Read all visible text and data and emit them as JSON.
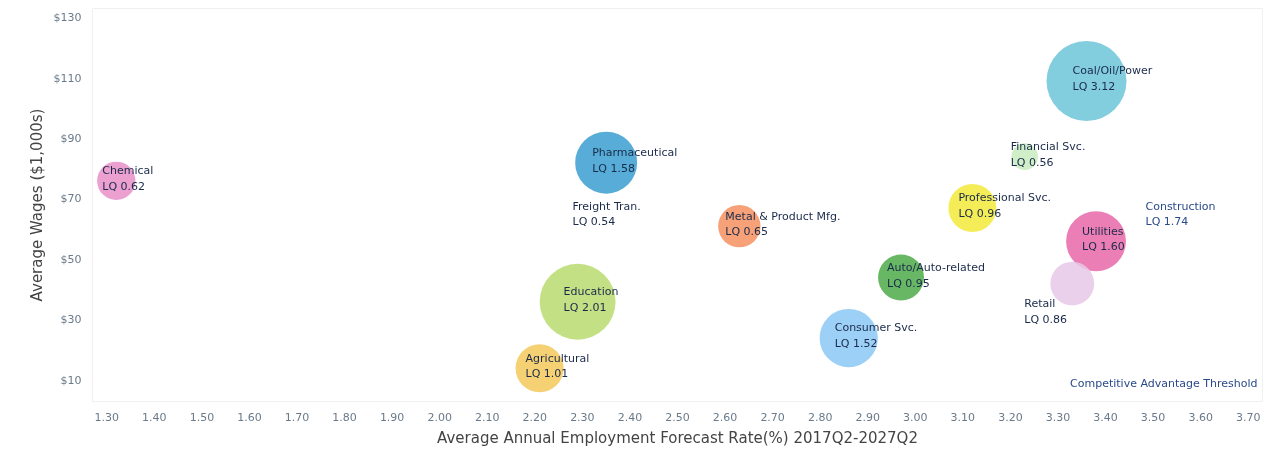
{
  "chart_data": {
    "type": "bubble",
    "xlabel": "Average Annual Employment Forecast Rate(%) 2017Q2-2027Q2",
    "ylabel": "Average Wages ($1,000s)",
    "x": [
      1.32,
      2.35,
      2.29,
      2.21,
      2.63,
      2.86,
      2.97,
      3.12,
      3.23,
      3.36,
      3.38,
      3.33
    ],
    "values": [
      76,
      82,
      36,
      14,
      61,
      24,
      44,
      67,
      84,
      109,
      56,
      42
    ],
    "sizes": [
      0.23,
      0.6,
      0.9,
      0.36,
      0.28,
      0.53,
      0.33,
      0.36,
      0.11,
      1,
      0.56,
      0.3
    ],
    "colors": [
      "#e88fc8",
      "#3a9fd0",
      "#b9dc6e",
      "#f5c95a",
      "#f5905f",
      "#8cc8f5",
      "#4daa4a",
      "#f2ea3a",
      "#c8ecc0",
      "#6cc4d8",
      "#e868a8",
      "#e8c8e8"
    ],
    "xlim": [
      1.27,
      3.73
    ],
    "ylim": [
      3,
      133
    ],
    "xticks": [
      {
        "value": 1.3,
        "label": "1.30"
      },
      {
        "value": 1.4,
        "label": "1.40"
      },
      {
        "value": 1.5,
        "label": "1.50"
      },
      {
        "value": 1.6,
        "label": "1.60"
      },
      {
        "value": 1.7,
        "label": "1.70"
      },
      {
        "value": 1.8,
        "label": "1.80"
      },
      {
        "value": 1.9,
        "label": "1.90"
      },
      {
        "value": 2.0,
        "label": "2.00"
      },
      {
        "value": 2.1,
        "label": "2.10"
      },
      {
        "value": 2.2,
        "label": "2.20"
      },
      {
        "value": 2.3,
        "label": "2.30"
      },
      {
        "value": 2.4,
        "label": "2.40"
      },
      {
        "value": 2.5,
        "label": "2.50"
      },
      {
        "value": 2.6,
        "label": "2.60"
      },
      {
        "value": 2.7,
        "label": "2.70"
      },
      {
        "value": 2.8,
        "label": "2.80"
      },
      {
        "value": 2.9,
        "label": "2.90"
      },
      {
        "value": 3.0,
        "label": "3.00"
      },
      {
        "value": 3.1,
        "label": "3.10"
      },
      {
        "value": 3.2,
        "label": "3.20"
      },
      {
        "value": 3.3,
        "label": "3.30"
      },
      {
        "value": 3.4,
        "label": "3.40"
      },
      {
        "value": 3.5,
        "label": "3.50"
      },
      {
        "value": 3.6,
        "label": "3.60"
      },
      {
        "value": 3.7,
        "label": "3.70"
      }
    ],
    "yticks": [
      {
        "value": 10,
        "label": "$10"
      },
      {
        "value": 30,
        "label": "$30"
      },
      {
        "value": 50,
        "label": "$50"
      },
      {
        "value": 70,
        "label": "$70"
      },
      {
        "value": 90,
        "label": "$90"
      },
      {
        "value": 110,
        "label": "$110"
      },
      {
        "value": 130,
        "label": "$130"
      }
    ],
    "grid": false,
    "annotations": [
      {
        "text": "Chemical\nLQ  0.62",
        "x": 1.32,
        "y": 76
      },
      {
        "text": "Pharmaceutical\nLQ  1.58",
        "x": 2.35,
        "y": 82
      },
      {
        "text": "Education\nLQ  2.01",
        "x": 2.29,
        "y": 36
      },
      {
        "text": "Agricultural\nLQ  1.01",
        "x": 2.21,
        "y": 14
      },
      "Freight Tran.\nLQ  0.54",
      {
        "text": "Metal & Product Mfg.\nLQ  0.65",
        "x": 2.63,
        "y": 61
      },
      {
        "text": "Consumer Svc.\nLQ  1.52",
        "x": 2.86,
        "y": 24
      },
      {
        "text": "Auto/Auto-related\nLQ  0.95",
        "x": 2.97,
        "y": 44
      },
      {
        "text": "Professional Svc.\nLQ  0.96",
        "x": 3.12,
        "y": 67
      },
      {
        "text": "Financial Svc.\nLQ  0.56",
        "x": 3.23,
        "y": 84
      },
      {
        "text": "Coal/Oil/Power\nLQ  3.12",
        "x": 3.36,
        "y": 109
      },
      {
        "text": "Utilities\nLQ  1.60",
        "x": 3.38,
        "y": 56
      },
      {
        "text": "Retail\nLQ  0.86",
        "x": 3.33,
        "y": 42
      },
      "Construction\nLQ  1.74",
      "Competitive Advantage Threshold"
    ]
  }
}
